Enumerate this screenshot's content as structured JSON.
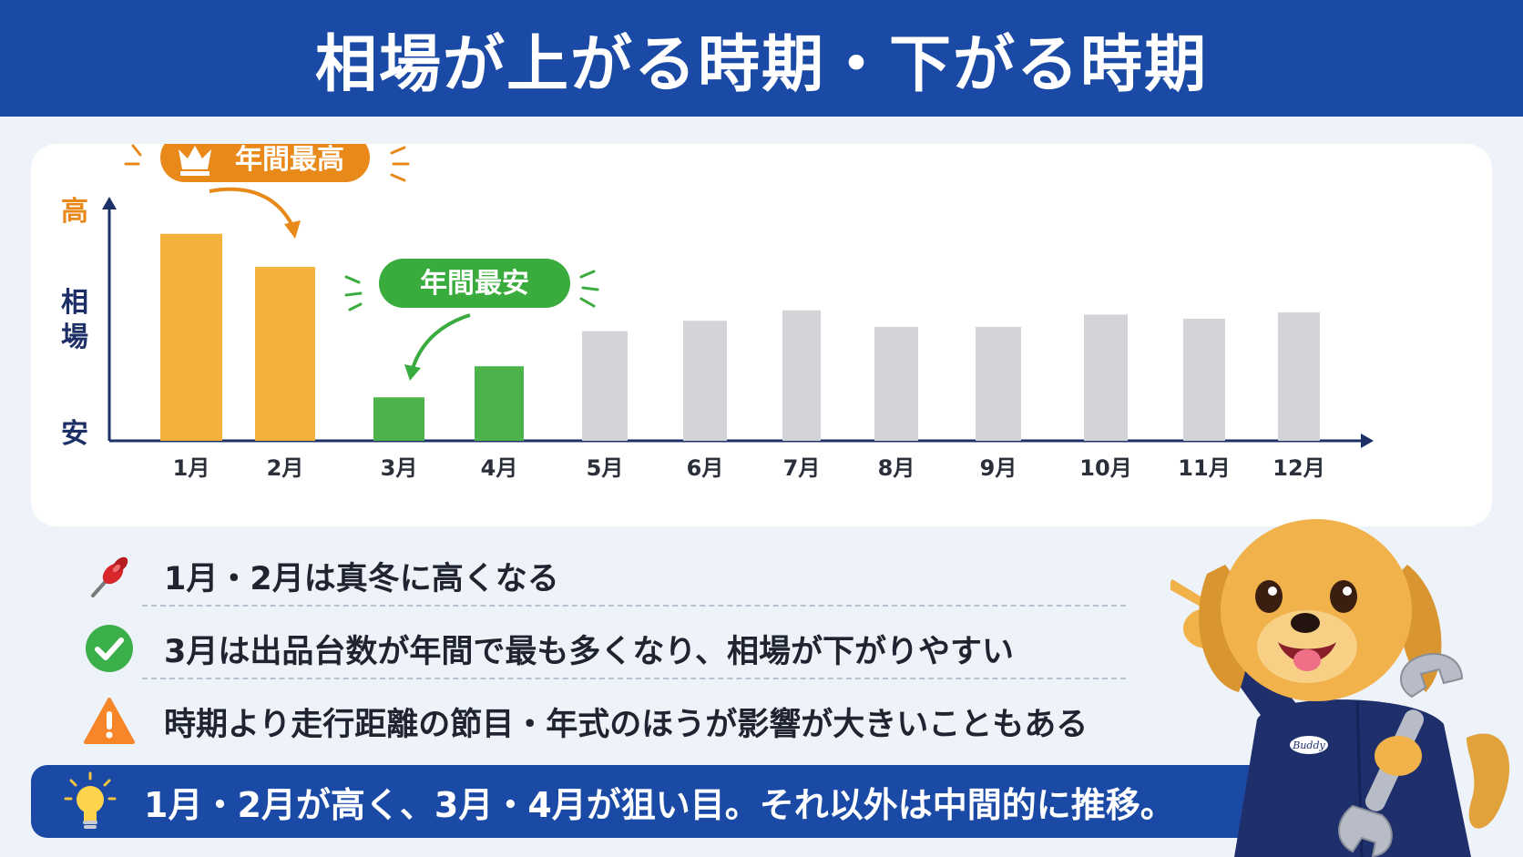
{
  "header": {
    "title": "相場が上がる時期・下がる時期"
  },
  "chart_data": {
    "type": "bar",
    "ylabel_top": "高",
    "ylabel_middle": "相場",
    "ylabel_bottom": "安",
    "categories": [
      "1月",
      "2月",
      "3月",
      "4月",
      "5月",
      "6月",
      "7月",
      "8月",
      "9月",
      "10月",
      "11月",
      "12月"
    ],
    "values": [
      100,
      84,
      21,
      36,
      53,
      58,
      63,
      55,
      55,
      61,
      59,
      62
    ],
    "ylim": [
      0,
      110
    ],
    "colors": [
      "#f4b13b",
      "#f4b13b",
      "#4cb34a",
      "#4cb34a",
      "#d2d4d8",
      "#d2d4d8",
      "#d2d4d8",
      "#d2d4d8",
      "#d2d4d8",
      "#d2d4d8",
      "#d2d4d8",
      "#d2d4d8"
    ],
    "grid": false,
    "annotations": [
      {
        "text": "年間最高",
        "color": "#e8891a",
        "icon": "crown-icon"
      },
      {
        "text": "年間最安",
        "color": "#3aab3d"
      }
    ]
  },
  "notes": [
    {
      "icon": "pushpin-icon",
      "text": "1月・2月は真冬に高くなる"
    },
    {
      "icon": "check-circle-icon",
      "text": "3月は出品台数が年間で最も多くなり、相場が下がりやすい"
    },
    {
      "icon": "warning-icon",
      "text": "時期より走行距離の節目・年式のほうが影響が大きいこともある"
    }
  ],
  "summary": {
    "icon": "lightbulb-icon",
    "text": "1月・2月が高く、3月・4月が狙い目。それ以外は中間的に推移。"
  },
  "mascot": {
    "icon": "dog-mechanic-icon",
    "badge": "Buddy"
  },
  "colors": {
    "brand": "#1a4aa6",
    "high": "#f4b13b",
    "low": "#4cb34a",
    "neutral": "#d2d4d8",
    "axis": "#1c2f66"
  }
}
